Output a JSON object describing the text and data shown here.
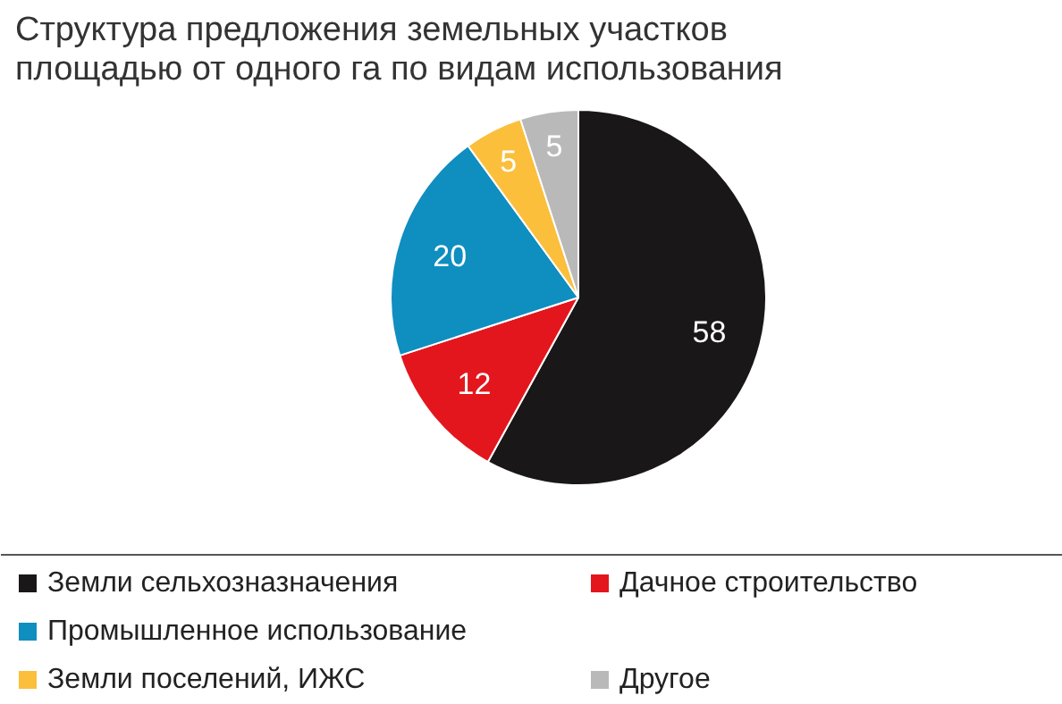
{
  "chart_data": {
    "type": "pie",
    "title": "Структура предложения земельных участков площадью от одного га по видам использования",
    "categories": [
      "Земли сельхозназначения",
      "Дачное строительство",
      "Промышленное использование",
      "Земли поселений, ИЖС",
      "Другое"
    ],
    "values": [
      58,
      12,
      20,
      5,
      5
    ],
    "colors": [
      "#1a1718",
      "#e3161d",
      "#0f8ec0",
      "#fbbf3c",
      "#b9b9b9"
    ],
    "data_labels": true,
    "legend": "bottom"
  }
}
